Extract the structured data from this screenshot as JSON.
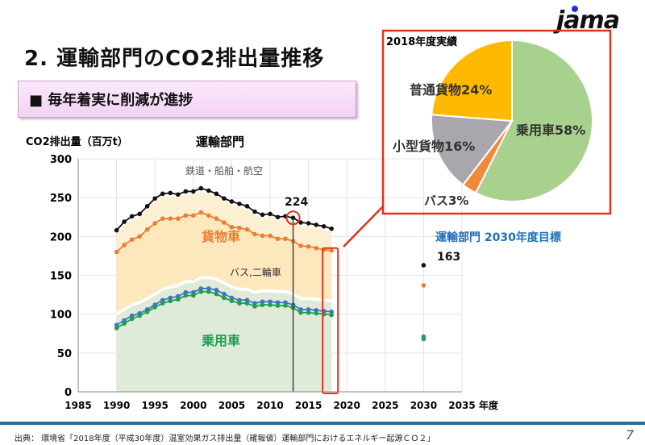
{
  "header": {
    "title": "2.  運輸部門のCO2排出量推移",
    "subtitle": "■ 毎年着実に削減が進捗",
    "logo_text": "jama"
  },
  "footer": {
    "source": "出典： 環境省「2018年度（平成30年度）温室効果ガス排出量（確報値）運輸部門におけるエネルギー起源ＣＯ２」",
    "page_number": "7"
  },
  "colors": {
    "accent_red": "#e0321e",
    "target_blue": "#1f6fb8",
    "footer_bar": "#2a6c9c"
  },
  "chart_data": [
    {
      "type": "area",
      "title": "運輸部門",
      "ylabel": "CO2排出量（百万t）",
      "xlabel": "年度",
      "xlim": [
        1985,
        2035
      ],
      "ylim": [
        0,
        300
      ],
      "x_ticks": [
        1985,
        1990,
        1995,
        2000,
        2005,
        2010,
        2015,
        2020,
        2025,
        2030,
        2035
      ],
      "y_ticks": [
        0,
        50,
        100,
        150,
        200,
        250,
        300
      ],
      "grid": true,
      "x": [
        1990,
        1991,
        1992,
        1993,
        1994,
        1995,
        1996,
        1997,
        1998,
        1999,
        2000,
        2001,
        2002,
        2003,
        2004,
        2005,
        2006,
        2007,
        2008,
        2009,
        2010,
        2011,
        2012,
        2013,
        2014,
        2015,
        2016,
        2017,
        2018
      ],
      "series": [
        {
          "name": "鉄道・船舶・航空",
          "color": "#111111",
          "values": [
            208,
            219,
            226,
            229,
            239,
            249,
            255,
            256,
            254,
            258,
            258,
            262,
            259,
            255,
            249,
            245,
            242,
            239,
            232,
            228,
            229,
            225,
            226,
            224,
            218,
            217,
            215,
            213,
            210
          ]
        },
        {
          "name": "貨物車",
          "color": "#ed7d31",
          "values": [
            180,
            189,
            196,
            200,
            209,
            217,
            223,
            223,
            223,
            227,
            227,
            231,
            227,
            223,
            218,
            212,
            211,
            209,
            203,
            201,
            201,
            197,
            197,
            194,
            188,
            187,
            185,
            183,
            182
          ]
        },
        {
          "name": "バス,二輪車",
          "color": "#4472c4",
          "values": [
            86,
            92,
            98,
            101,
            106,
            112,
            118,
            121,
            123,
            128,
            128,
            133,
            133,
            131,
            126,
            121,
            118,
            118,
            114,
            116,
            116,
            115,
            115,
            112,
            106,
            106,
            105,
            104,
            103
          ]
        },
        {
          "name": "乗用車",
          "color": "#1aa050",
          "values": [
            82,
            88,
            94,
            98,
            103,
            109,
            114,
            117,
            119,
            124,
            124,
            129,
            129,
            126,
            121,
            117,
            114,
            114,
            110,
            112,
            112,
            111,
            111,
            108,
            102,
            102,
            101,
            100,
            99
          ]
        }
      ],
      "targets_2030": {
        "label": "運輸部門  2030年度目標",
        "x": 2030,
        "values": [
          163,
          137,
          71,
          68
        ],
        "total_label": "163"
      },
      "annotations": [
        {
          "x": 2013,
          "y": 224,
          "text": "224"
        }
      ]
    },
    {
      "type": "pie",
      "title": "2018年度実績",
      "slices": [
        {
          "label": "乗用車58%",
          "value": 58,
          "color": "#a9d18e"
        },
        {
          "label": "バス3%",
          "value": 3,
          "color": "#f08a3a"
        },
        {
          "label": "小型貨物16%",
          "value": 16,
          "color": "#a9a7ad"
        },
        {
          "label": "普通貨物24%",
          "value": 24,
          "color": "#ffb900"
        }
      ]
    }
  ]
}
